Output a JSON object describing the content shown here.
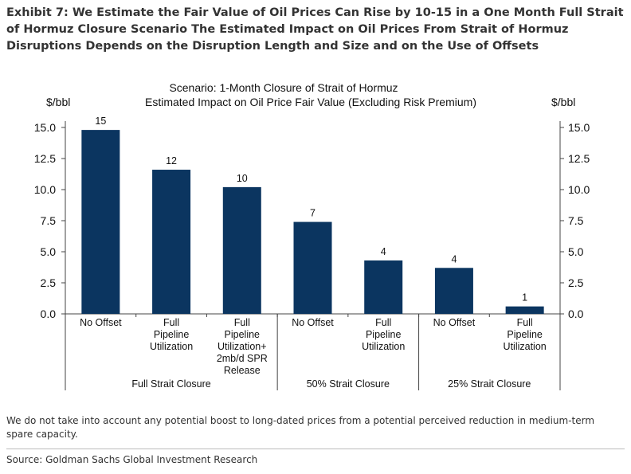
{
  "title": "Exhibit 7: We Estimate the Fair Value of Oil Prices Can Rise by 10-15 in a One Month Full Strait of Hormuz Closure Scenario The Estimated Impact on Oil Prices From Strait of Hormuz Disruptions Depends on the Disruption Length and Size and on the Use of Offsets",
  "note": "We do not take into account any potential boost to long-dated prices from a potential perceived reduction in medium-term spare capacity.",
  "source": "Source: Goldman Sachs Global Investment Research",
  "chart_data": {
    "type": "bar",
    "title": "Scenario: 1-Month Closure of Strait of Hormuz",
    "subtitle": "Estimated Impact on Oil Price Fair Value (Excluding Risk Premium)",
    "ylabel_left": "$/bbl",
    "ylabel_right": "$/bbl",
    "ylim": [
      0,
      15
    ],
    "yticks": [
      "0.0",
      "2.5",
      "5.0",
      "7.5",
      "10.0",
      "12.5",
      "15.0"
    ],
    "grid": false,
    "bar_color": "#0b3560",
    "categories": [
      [
        "No Offset"
      ],
      [
        "Full",
        "Pipeline",
        "Utilization"
      ],
      [
        "Full",
        "Pipeline",
        "Utilization+",
        "2mb/d SPR",
        "Release"
      ],
      [
        "No Offset"
      ],
      [
        "Full",
        "Pipeline",
        "Utilization"
      ],
      [
        "No Offset"
      ],
      [
        "Full",
        "Pipeline",
        "Utilization"
      ]
    ],
    "groups": [
      {
        "label": "Full Strait Closure",
        "count": 3
      },
      {
        "label": "50% Strait Closure",
        "count": 2
      },
      {
        "label": "25% Strait Closure",
        "count": 2
      }
    ],
    "values": [
      14.8,
      11.6,
      10.2,
      7.4,
      4.3,
      3.7,
      0.6
    ],
    "data_labels": [
      "15",
      "12",
      "10",
      "7",
      "4",
      "4",
      "1"
    ]
  }
}
